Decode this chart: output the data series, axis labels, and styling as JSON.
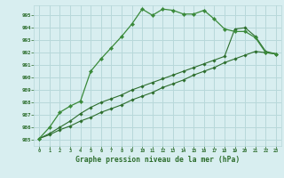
{
  "xlabel": "Graphe pression niveau de la mer (hPa)",
  "background_color": "#d8eef0",
  "grid_color": "#b8d8da",
  "line_color_dark": "#2d6e2d",
  "line_color_mid": "#3a8a3a",
  "ylim": [
    984.5,
    995.8
  ],
  "xlim": [
    -0.5,
    23.5
  ],
  "yticks": [
    985,
    986,
    987,
    988,
    989,
    990,
    991,
    992,
    993,
    994,
    995
  ],
  "xticks": [
    0,
    1,
    2,
    3,
    4,
    5,
    6,
    7,
    8,
    9,
    10,
    11,
    12,
    13,
    14,
    15,
    16,
    17,
    18,
    19,
    20,
    21,
    22,
    23
  ],
  "series1_x": [
    0,
    1,
    2,
    3,
    4,
    5,
    6,
    7,
    8,
    9,
    10,
    11,
    12,
    13,
    14,
    15,
    16,
    17,
    18,
    19,
    20,
    21,
    22,
    23
  ],
  "series1_y": [
    985.1,
    986.0,
    987.2,
    987.7,
    988.1,
    990.5,
    991.5,
    992.4,
    993.3,
    994.3,
    995.5,
    995.0,
    995.5,
    995.4,
    995.1,
    995.1,
    995.4,
    994.7,
    993.9,
    993.7,
    993.7,
    993.2,
    992.0,
    991.9
  ],
  "series2_x": [
    0,
    1,
    2,
    3,
    4,
    5,
    6,
    7,
    8,
    9,
    10,
    11,
    12,
    13,
    14,
    15,
    16,
    17,
    18,
    19,
    20,
    21,
    22,
    23
  ],
  "series2_y": [
    985.1,
    985.4,
    985.8,
    986.1,
    986.5,
    986.8,
    987.2,
    987.5,
    987.8,
    988.2,
    988.5,
    988.8,
    989.2,
    989.5,
    989.8,
    990.2,
    990.5,
    990.8,
    991.2,
    991.5,
    991.8,
    992.1,
    992.0,
    991.9
  ],
  "series3_x": [
    0,
    1,
    2,
    3,
    4,
    5,
    6,
    7,
    8,
    9,
    10,
    11,
    12,
    13,
    14,
    15,
    16,
    17,
    18,
    19,
    20,
    21,
    22,
    23
  ],
  "series3_y": [
    985.1,
    985.5,
    986.0,
    986.5,
    987.1,
    987.6,
    988.0,
    988.3,
    988.6,
    989.0,
    989.3,
    989.6,
    989.9,
    990.2,
    990.5,
    990.8,
    991.1,
    991.4,
    991.7,
    993.9,
    994.0,
    993.3,
    992.1,
    991.9
  ]
}
